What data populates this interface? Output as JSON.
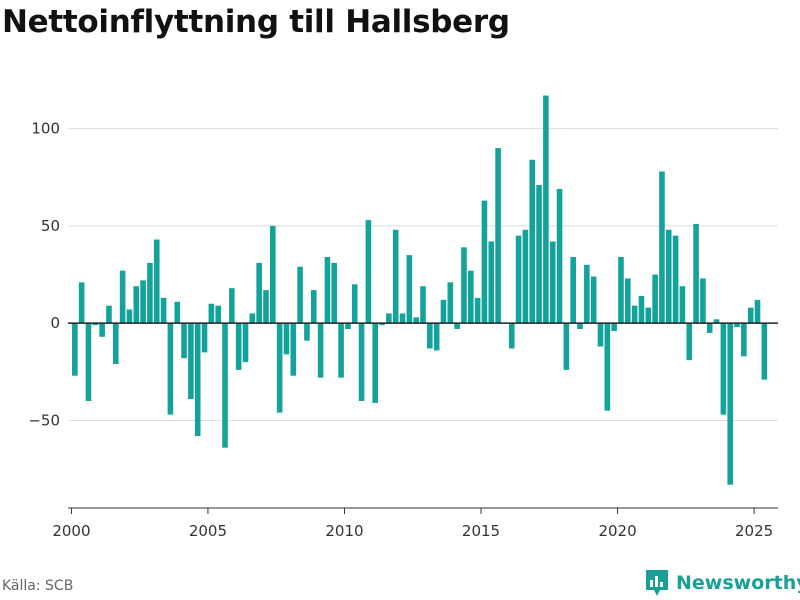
{
  "title": "Nettoinflyttning till Hallsberg",
  "source": "Källa: SCB",
  "brand": {
    "name": "Newsworthy",
    "icon": "newsworthy-logo-icon",
    "color": "#18a096"
  },
  "colors": {
    "bar": "#14a39a",
    "grid": "#dddddd",
    "zero_line": "#222222",
    "axis": "#333333"
  },
  "chart_data": {
    "type": "bar",
    "title": "Nettoinflyttning till Hallsberg",
    "xlabel": "",
    "ylabel": "",
    "x_ticks": [
      "2000",
      "2005",
      "2010",
      "2015",
      "2020",
      "2025"
    ],
    "y_ticks": [
      "−50",
      "0",
      "50",
      "100"
    ],
    "y_tick_values": [
      -50,
      0,
      50,
      100
    ],
    "xlim": [
      1999.875,
      2025.875
    ],
    "ylim": [
      -95,
      125
    ],
    "grid": true,
    "legend": "none",
    "series": [
      {
        "x": [
          2000.125,
          2000.375,
          2000.625,
          2000.875,
          2001.125,
          2001.375,
          2001.625,
          2001.875,
          2002.125,
          2002.375,
          2002.625,
          2002.875,
          2003.125,
          2003.375,
          2003.625,
          2003.875,
          2004.125,
          2004.375,
          2004.625,
          2004.875,
          2005.125,
          2005.375,
          2005.625,
          2005.875,
          2006.125,
          2006.375,
          2006.625,
          2006.875,
          2007.125,
          2007.375,
          2007.625,
          2007.875,
          2008.125,
          2008.375,
          2008.625,
          2008.875,
          2009.125,
          2009.375,
          2009.625,
          2009.875,
          2010.125,
          2010.375,
          2010.625,
          2010.875,
          2011.125,
          2011.375,
          2011.625,
          2011.875,
          2012.125,
          2012.375,
          2012.625,
          2012.875,
          2013.125,
          2013.375,
          2013.625,
          2013.875,
          2014.125,
          2014.375,
          2014.625,
          2014.875,
          2015.125,
          2015.375,
          2015.625,
          2015.875,
          2016.125,
          2016.375,
          2016.625,
          2016.875,
          2017.125,
          2017.375,
          2017.625,
          2017.875,
          2018.125,
          2018.375,
          2018.625,
          2018.875,
          2019.125,
          2019.375,
          2019.625,
          2019.875,
          2020.125,
          2020.375,
          2020.625,
          2020.875,
          2021.125,
          2021.375,
          2021.625,
          2021.875,
          2022.125,
          2022.375,
          2022.625,
          2022.875,
          2023.125,
          2023.375,
          2023.625,
          2023.875,
          2024.125,
          2024.375,
          2024.625,
          2024.875,
          2025.125,
          2025.375
        ],
        "values": [
          -27,
          21,
          -40,
          -1,
          -7,
          9,
          -21,
          27,
          7,
          19,
          22,
          31,
          43,
          13,
          -47,
          11,
          -18,
          -39,
          -58,
          -15,
          10,
          9,
          -64,
          18,
          -24,
          -20,
          5,
          31,
          17,
          50,
          -46,
          -16,
          -27,
          29,
          -9,
          17,
          -28,
          34,
          31,
          -28,
          -3,
          20,
          -40,
          53,
          -41,
          -1,
          5,
          48,
          5,
          35,
          3,
          19,
          -13,
          -14,
          12,
          21,
          -3,
          39,
          27,
          13,
          63,
          42,
          90,
          0,
          -13,
          45,
          48,
          84,
          71,
          117,
          42,
          69,
          -24,
          34,
          -3,
          30,
          24,
          -12,
          -45,
          -4,
          34,
          23,
          9,
          14,
          8,
          25,
          78,
          48,
          45,
          19,
          -19,
          51,
          23,
          -5,
          2,
          -47,
          -83,
          -2,
          -17,
          8,
          12,
          -29
        ]
      }
    ]
  }
}
